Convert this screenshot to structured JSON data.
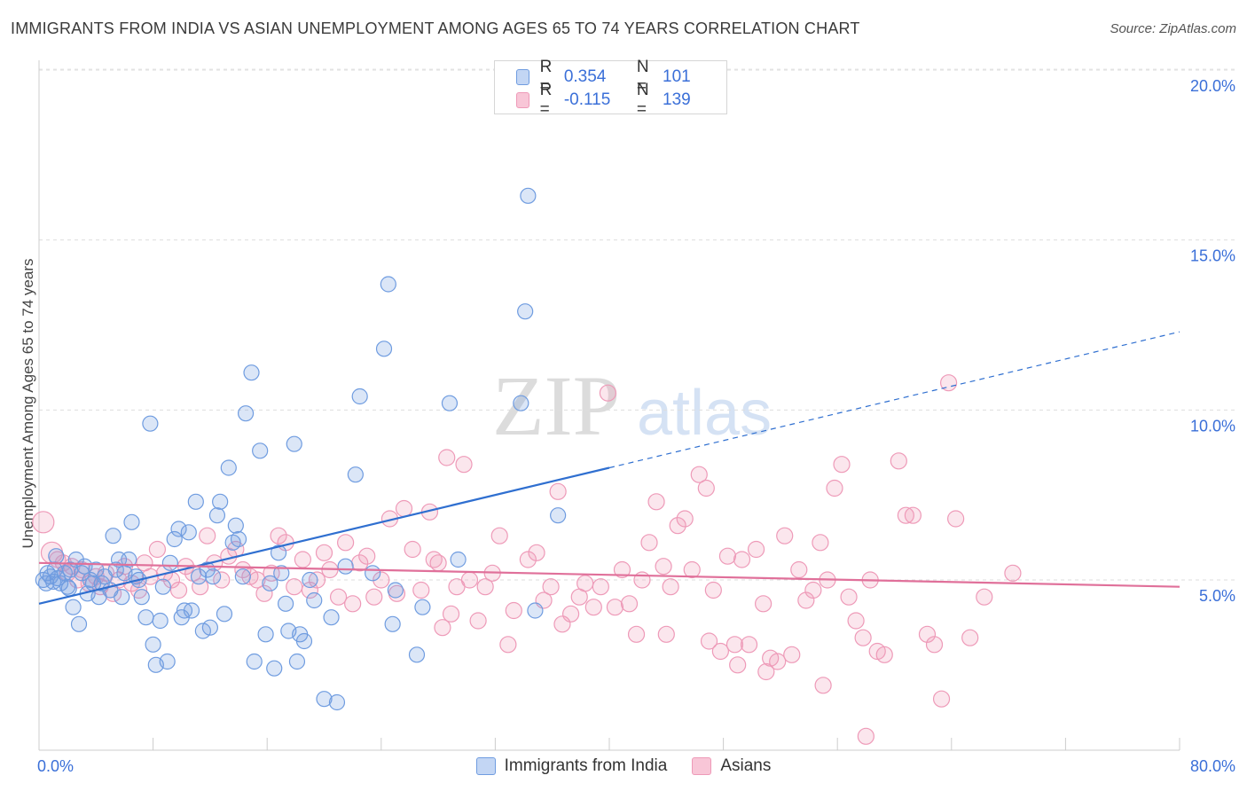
{
  "header": {
    "title": "IMMIGRANTS FROM INDIA VS ASIAN UNEMPLOYMENT AMONG AGES 65 TO 74 YEARS CORRELATION CHART",
    "source": "Source: ZipAtlas.com"
  },
  "watermark": {
    "zip": "ZIP",
    "atlas": "atlas"
  },
  "legend_top": {
    "rows": [
      {
        "r_label": "R =",
        "r_value": "0.354",
        "n_label": "N =",
        "n_value": "101"
      },
      {
        "r_label": "R =",
        "r_value": "-0.115",
        "n_label": "N =",
        "n_value": "139"
      }
    ]
  },
  "chart_data": {
    "type": "scatter",
    "title": "IMMIGRANTS FROM INDIA VS ASIAN UNEMPLOYMENT AMONG AGES 65 TO 74 YEARS CORRELATION CHART",
    "xlabel": "",
    "ylabel": "Unemployment Among Ages 65 to 74 years",
    "xlim": [
      0,
      80
    ],
    "ylim": [
      0,
      20
    ],
    "x_tick_labels": [
      "0.0%",
      "80.0%"
    ],
    "y_tick_labels": [
      "5.0%",
      "10.0%",
      "15.0%",
      "20.0%"
    ],
    "y_ticks": [
      5,
      10,
      15,
      20
    ],
    "grid": "horizontal-dashed",
    "legend_position": "top-center",
    "colors": {
      "india": "#6f9ce0",
      "asians": "#ee9ab8",
      "india_line": "#2f6fd0",
      "asians_line": "#e0709a",
      "tick_text": "#3a6fd8"
    },
    "series": [
      {
        "name": "Immigrants from India",
        "R": 0.354,
        "N": 101,
        "trend": {
          "x": [
            0,
            40
          ],
          "y": [
            4.3,
            8.3
          ],
          "dashed_x": [
            40,
            80
          ],
          "dashed_y": [
            8.3,
            12.3
          ]
        },
        "points": [
          [
            0.3,
            5.0
          ],
          [
            0.5,
            4.9
          ],
          [
            0.6,
            5.2
          ],
          [
            0.8,
            5.1
          ],
          [
            1.0,
            4.95
          ],
          [
            1.1,
            5.3
          ],
          [
            1.3,
            5.05
          ],
          [
            1.5,
            4.9
          ],
          [
            1.8,
            5.2
          ],
          [
            2.0,
            4.8
          ],
          [
            2.2,
            5.3
          ],
          [
            2.4,
            4.2
          ],
          [
            2.6,
            5.6
          ],
          [
            2.8,
            3.7
          ],
          [
            3.0,
            5.2
          ],
          [
            3.2,
            5.4
          ],
          [
            3.4,
            4.6
          ],
          [
            3.6,
            5.0
          ],
          [
            3.8,
            4.9
          ],
          [
            4.0,
            5.3
          ],
          [
            4.2,
            4.5
          ],
          [
            4.4,
            4.9
          ],
          [
            4.6,
            5.1
          ],
          [
            5.0,
            4.7
          ],
          [
            5.2,
            6.3
          ],
          [
            5.4,
            5.3
          ],
          [
            5.6,
            5.6
          ],
          [
            5.8,
            4.5
          ],
          [
            6.0,
            5.2
          ],
          [
            6.3,
            5.6
          ],
          [
            6.5,
            6.7
          ],
          [
            6.8,
            5.1
          ],
          [
            7.0,
            5.0
          ],
          [
            7.2,
            4.5
          ],
          [
            7.5,
            3.9
          ],
          [
            7.8,
            9.6
          ],
          [
            8.0,
            3.1
          ],
          [
            8.2,
            2.5
          ],
          [
            8.5,
            3.8
          ],
          [
            8.7,
            4.8
          ],
          [
            9.0,
            2.6
          ],
          [
            9.2,
            5.5
          ],
          [
            9.5,
            6.2
          ],
          [
            9.8,
            6.5
          ],
          [
            10.0,
            3.9
          ],
          [
            10.2,
            4.1
          ],
          [
            10.5,
            6.4
          ],
          [
            10.7,
            4.1
          ],
          [
            11.0,
            7.3
          ],
          [
            11.2,
            5.1
          ],
          [
            11.5,
            3.5
          ],
          [
            11.8,
            5.3
          ],
          [
            12.0,
            3.6
          ],
          [
            12.2,
            5.1
          ],
          [
            12.5,
            6.9
          ],
          [
            12.7,
            7.3
          ],
          [
            13.0,
            4.0
          ],
          [
            13.3,
            8.3
          ],
          [
            13.6,
            6.1
          ],
          [
            13.8,
            6.6
          ],
          [
            14.0,
            6.2
          ],
          [
            14.3,
            5.1
          ],
          [
            14.5,
            9.9
          ],
          [
            14.9,
            11.1
          ],
          [
            15.1,
            2.6
          ],
          [
            15.5,
            8.8
          ],
          [
            15.9,
            3.4
          ],
          [
            16.2,
            4.9
          ],
          [
            16.5,
            2.4
          ],
          [
            16.8,
            5.8
          ],
          [
            17.0,
            5.2
          ],
          [
            17.3,
            4.3
          ],
          [
            17.5,
            3.5
          ],
          [
            17.9,
            9.0
          ],
          [
            18.1,
            2.6
          ],
          [
            18.3,
            3.4
          ],
          [
            18.6,
            3.2
          ],
          [
            19.0,
            5.0
          ],
          [
            19.3,
            4.4
          ],
          [
            20.0,
            1.5
          ],
          [
            20.5,
            3.9
          ],
          [
            20.9,
            1.4
          ],
          [
            21.5,
            5.4
          ],
          [
            22.2,
            8.1
          ],
          [
            22.5,
            10.4
          ],
          [
            23.4,
            5.2
          ],
          [
            24.2,
            11.8
          ],
          [
            24.5,
            13.7
          ],
          [
            24.8,
            3.7
          ],
          [
            25.0,
            4.7
          ],
          [
            26.5,
            2.8
          ],
          [
            26.9,
            4.2
          ],
          [
            28.8,
            10.2
          ],
          [
            29.4,
            5.6
          ],
          [
            33.8,
            10.2
          ],
          [
            34.1,
            12.9
          ],
          [
            34.3,
            16.3
          ],
          [
            34.8,
            4.1
          ],
          [
            36.4,
            6.9
          ],
          [
            1.2,
            5.7
          ],
          [
            2.1,
            4.75
          ]
        ]
      },
      {
        "name": "Asians",
        "R": -0.115,
        "N": 139,
        "trend": {
          "x": [
            0,
            80
          ],
          "y": [
            5.5,
            4.8
          ]
        },
        "points": [
          [
            0.3,
            6.7
          ],
          [
            0.9,
            5.8
          ],
          [
            1.3,
            5.6
          ],
          [
            1.7,
            5.5
          ],
          [
            2.0,
            5.2
          ],
          [
            2.3,
            5.4
          ],
          [
            2.7,
            5.0
          ],
          [
            3.0,
            5.3
          ],
          [
            3.5,
            4.9
          ],
          [
            4.0,
            5.1
          ],
          [
            4.3,
            4.8
          ],
          [
            4.7,
            5.2
          ],
          [
            5.2,
            4.6
          ],
          [
            5.6,
            5.0
          ],
          [
            6.0,
            5.4
          ],
          [
            6.5,
            4.9
          ],
          [
            7.0,
            4.7
          ],
          [
            7.4,
            5.5
          ],
          [
            7.8,
            5.1
          ],
          [
            8.3,
            5.9
          ],
          [
            8.8,
            5.2
          ],
          [
            9.3,
            5.0
          ],
          [
            9.8,
            4.7
          ],
          [
            10.3,
            5.4
          ],
          [
            10.8,
            5.2
          ],
          [
            11.3,
            4.8
          ],
          [
            11.8,
            6.3
          ],
          [
            12.3,
            5.5
          ],
          [
            12.8,
            5.0
          ],
          [
            13.3,
            5.7
          ],
          [
            13.8,
            5.9
          ],
          [
            14.3,
            5.3
          ],
          [
            14.8,
            5.1
          ],
          [
            15.3,
            5.0
          ],
          [
            15.8,
            4.6
          ],
          [
            16.3,
            5.2
          ],
          [
            16.8,
            6.3
          ],
          [
            17.3,
            6.1
          ],
          [
            17.9,
            4.8
          ],
          [
            18.5,
            5.6
          ],
          [
            19.0,
            4.7
          ],
          [
            19.5,
            5.0
          ],
          [
            20.0,
            5.8
          ],
          [
            20.4,
            5.3
          ],
          [
            21.0,
            4.5
          ],
          [
            21.5,
            6.1
          ],
          [
            22.0,
            4.3
          ],
          [
            22.5,
            5.5
          ],
          [
            23.0,
            5.7
          ],
          [
            23.5,
            4.5
          ],
          [
            24.0,
            5.0
          ],
          [
            24.6,
            6.8
          ],
          [
            25.1,
            4.6
          ],
          [
            25.6,
            7.1
          ],
          [
            26.2,
            5.9
          ],
          [
            26.8,
            4.7
          ],
          [
            27.4,
            7.0
          ],
          [
            27.7,
            5.6
          ],
          [
            28.0,
            5.5
          ],
          [
            28.3,
            3.6
          ],
          [
            28.6,
            8.6
          ],
          [
            28.9,
            4.0
          ],
          [
            29.3,
            4.8
          ],
          [
            29.8,
            8.4
          ],
          [
            30.2,
            5.0
          ],
          [
            30.8,
            3.8
          ],
          [
            31.3,
            4.8
          ],
          [
            31.8,
            5.2
          ],
          [
            32.3,
            6.3
          ],
          [
            32.9,
            3.1
          ],
          [
            33.3,
            4.1
          ],
          [
            34.3,
            5.6
          ],
          [
            34.9,
            5.8
          ],
          [
            35.4,
            4.4
          ],
          [
            35.9,
            4.8
          ],
          [
            36.4,
            7.6
          ],
          [
            36.7,
            3.7
          ],
          [
            37.3,
            4.0
          ],
          [
            37.9,
            4.5
          ],
          [
            38.3,
            4.9
          ],
          [
            38.9,
            4.2
          ],
          [
            39.4,
            4.8
          ],
          [
            39.9,
            10.5
          ],
          [
            40.4,
            4.2
          ],
          [
            40.9,
            5.3
          ],
          [
            41.4,
            4.3
          ],
          [
            41.9,
            3.4
          ],
          [
            42.3,
            5.0
          ],
          [
            42.8,
            6.1
          ],
          [
            43.3,
            7.3
          ],
          [
            43.8,
            5.4
          ],
          [
            44.3,
            4.8
          ],
          [
            44.8,
            6.6
          ],
          [
            45.3,
            6.8
          ],
          [
            45.8,
            5.3
          ],
          [
            46.3,
            8.1
          ],
          [
            46.8,
            7.7
          ],
          [
            47.3,
            4.7
          ],
          [
            47.8,
            2.9
          ],
          [
            48.3,
            5.7
          ],
          [
            48.8,
            3.1
          ],
          [
            49.3,
            5.6
          ],
          [
            49.8,
            3.1
          ],
          [
            50.3,
            5.9
          ],
          [
            50.8,
            4.3
          ],
          [
            51.3,
            2.7
          ],
          [
            51.8,
            2.6
          ],
          [
            52.3,
            6.3
          ],
          [
            52.8,
            2.8
          ],
          [
            53.3,
            5.3
          ],
          [
            53.8,
            4.4
          ],
          [
            54.3,
            4.7
          ],
          [
            54.8,
            6.1
          ],
          [
            55.3,
            5.0
          ],
          [
            55.8,
            7.7
          ],
          [
            56.3,
            8.4
          ],
          [
            56.8,
            4.5
          ],
          [
            57.3,
            3.8
          ],
          [
            57.8,
            3.3
          ],
          [
            58.3,
            5.0
          ],
          [
            58.8,
            2.9
          ],
          [
            59.3,
            2.8
          ],
          [
            60.3,
            8.5
          ],
          [
            60.8,
            6.9
          ],
          [
            61.3,
            6.9
          ],
          [
            62.3,
            3.4
          ],
          [
            62.8,
            3.1
          ],
          [
            63.3,
            1.5
          ],
          [
            63.8,
            10.8
          ],
          [
            64.3,
            6.8
          ],
          [
            65.3,
            3.3
          ],
          [
            66.3,
            4.5
          ],
          [
            68.3,
            5.2
          ],
          [
            58.0,
            0.4
          ],
          [
            55.0,
            1.9
          ],
          [
            51.0,
            2.3
          ],
          [
            47.0,
            3.2
          ],
          [
            44.0,
            3.4
          ],
          [
            49.0,
            2.5
          ]
        ]
      }
    ]
  },
  "legend_bottom": {
    "items": [
      {
        "label": "Immigrants from India"
      },
      {
        "label": "Asians"
      }
    ]
  }
}
